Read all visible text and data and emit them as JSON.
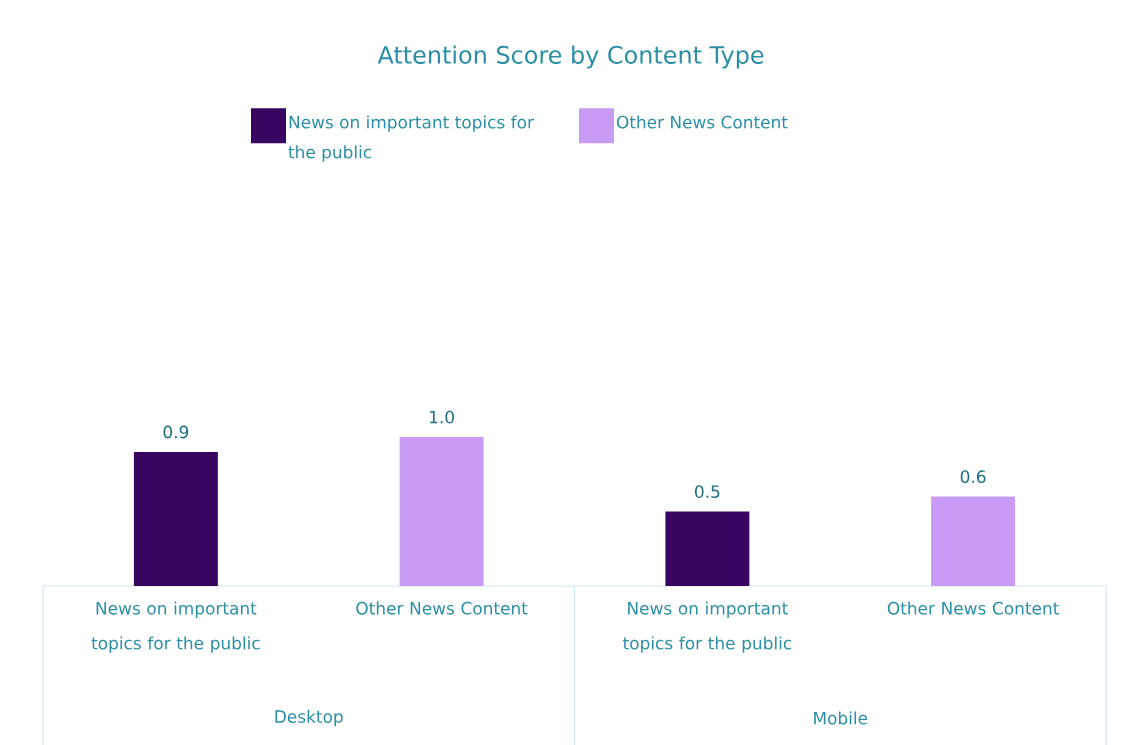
{
  "chart_data": {
    "type": "bar",
    "title": "Attention Score by Content Type",
    "categories": [
      "News on important topics for the public",
      "Other News Content",
      "News on important topics for the public",
      "Other News Content"
    ],
    "series": [
      {
        "name": "News on important topics for the public",
        "color": "#380661",
        "values": [
          0.9,
          null,
          0.5,
          null
        ],
        "value_labels": [
          "0.9",
          null,
          "0.5",
          null
        ]
      },
      {
        "name": "Other News Content",
        "color": "#c89cf4",
        "values": [
          null,
          1.0,
          null,
          0.6
        ],
        "value_labels": [
          null,
          "1.0",
          null,
          "0.6"
        ]
      }
    ],
    "annotations": [
      "Desktop",
      "Mobile"
    ],
    "legend": "top"
  }
}
